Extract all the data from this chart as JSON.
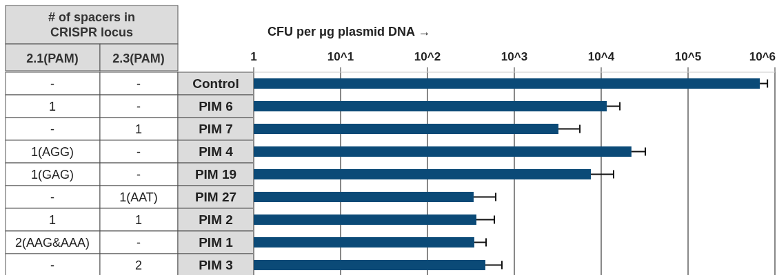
{
  "chart_data": {
    "type": "bar",
    "orientation": "horizontal",
    "log": "x",
    "xlabel": "CFU per μg plasmid DNA →",
    "categories": [
      "Control",
      "PIM 6",
      "PIM 7",
      "PIM 4",
      "PIM 19",
      "PIM 27",
      "PIM 2",
      "PIM 1",
      "PIM 3"
    ],
    "values": [
      670000,
      11600,
      3220,
      22300,
      7600,
      340,
      366,
      346,
      464
    ],
    "errors": [
      [
        670000,
        820000
      ],
      [
        11600,
        16400
      ],
      [
        3220,
        5680
      ],
      [
        22300,
        32200
      ],
      [
        7600,
        13900
      ],
      [
        340,
        611
      ],
      [
        366,
        589
      ],
      [
        346,
        473
      ],
      [
        464,
        720
      ]
    ],
    "color": "#0b4a77",
    "xlim": [
      1,
      1000000
    ],
    "xticks": [
      1,
      {
        "value": 10,
        "label": "10^1"
      },
      {
        "value": 100,
        "label": "10^2"
      },
      {
        "value": 1000,
        "label": "10^3"
      },
      {
        "value": 10000,
        "label": "10^4"
      },
      {
        "value": 100000,
        "label": "10^5"
      },
      {
        "value": 1000000,
        "label": "10^6"
      }
    ],
    "grid": "x",
    "annotations": [
      "# of spacers in CRISPR locus",
      "2.1(PAM)",
      "2.3(PAM)",
      "-",
      "-",
      "1",
      "-",
      "-",
      "1",
      "1(AGG)",
      "-",
      "1(GAG)",
      "-",
      "-",
      "1(AAT)",
      "1",
      "1",
      "2(AAG&AAA)",
      "-",
      "-",
      "2"
    ]
  }
}
